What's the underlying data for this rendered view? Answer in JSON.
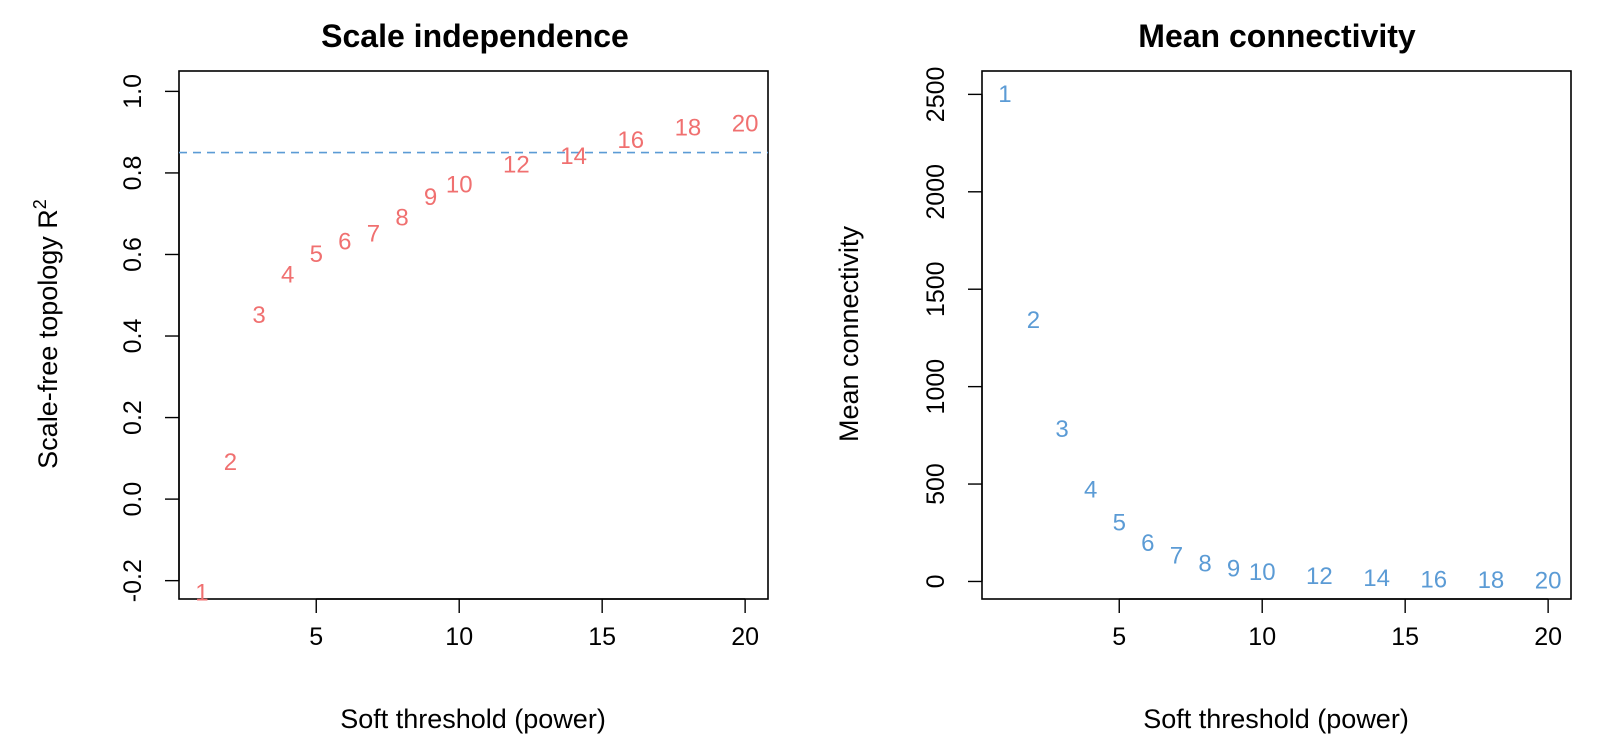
{
  "chart_data": [
    {
      "type": "scatter",
      "title": "Scale independence",
      "xlabel": "Soft threshold (power)",
      "ylabel": "Scale-free topology R",
      "ylabel_superscript": "2",
      "xlim": [
        0.2,
        20.8
      ],
      "ylim": [
        -0.245,
        1.05
      ],
      "x_ticks": [
        "5",
        "10",
        "15",
        "20"
      ],
      "y_ticks": [
        "-0.2",
        "0.0",
        "0.2",
        "0.4",
        "0.6",
        "0.8",
        "1.0"
      ],
      "point_color": "#f07070",
      "points": [
        {
          "x": 1,
          "y": -0.23,
          "label": "1"
        },
        {
          "x": 2,
          "y": 0.09,
          "label": "2"
        },
        {
          "x": 3,
          "y": 0.45,
          "label": "3"
        },
        {
          "x": 4,
          "y": 0.55,
          "label": "4"
        },
        {
          "x": 5,
          "y": 0.6,
          "label": "5"
        },
        {
          "x": 6,
          "y": 0.63,
          "label": "6"
        },
        {
          "x": 7,
          "y": 0.65,
          "label": "7"
        },
        {
          "x": 8,
          "y": 0.69,
          "label": "8"
        },
        {
          "x": 9,
          "y": 0.74,
          "label": "9"
        },
        {
          "x": 10,
          "y": 0.77,
          "label": "10"
        },
        {
          "x": 12,
          "y": 0.82,
          "label": "12"
        },
        {
          "x": 14,
          "y": 0.84,
          "label": "14"
        },
        {
          "x": 16,
          "y": 0.88,
          "label": "16"
        },
        {
          "x": 18,
          "y": 0.91,
          "label": "18"
        },
        {
          "x": 20,
          "y": 0.92,
          "label": "20"
        }
      ],
      "reference_line": {
        "y": 0.85,
        "color": "#5b9bd5",
        "style": "dashed"
      },
      "grid": false,
      "legend": false
    },
    {
      "type": "scatter",
      "title": "Mean connectivity",
      "xlabel": "Soft threshold (power)",
      "ylabel": "Mean connectivity",
      "xlim": [
        0.2,
        20.8
      ],
      "ylim": [
        -90,
        2620
      ],
      "x_ticks": [
        "5",
        "10",
        "15",
        "20"
      ],
      "y_ticks": [
        "0",
        "500",
        "1000",
        "1500",
        "2000",
        "2500"
      ],
      "point_color": "#5b9bd5",
      "points": [
        {
          "x": 1,
          "y": 2500,
          "label": "1"
        },
        {
          "x": 2,
          "y": 1340,
          "label": "2"
        },
        {
          "x": 3,
          "y": 780,
          "label": "3"
        },
        {
          "x": 4,
          "y": 470,
          "label": "4"
        },
        {
          "x": 5,
          "y": 300,
          "label": "5"
        },
        {
          "x": 6,
          "y": 195,
          "label": "6"
        },
        {
          "x": 7,
          "y": 130,
          "label": "7"
        },
        {
          "x": 8,
          "y": 90,
          "label": "8"
        },
        {
          "x": 9,
          "y": 63,
          "label": "9"
        },
        {
          "x": 10,
          "y": 45,
          "label": "10"
        },
        {
          "x": 12,
          "y": 25,
          "label": "12"
        },
        {
          "x": 14,
          "y": 14,
          "label": "14"
        },
        {
          "x": 16,
          "y": 8,
          "label": "16"
        },
        {
          "x": 18,
          "y": 5,
          "label": "18"
        },
        {
          "x": 20,
          "y": 3,
          "label": "20"
        }
      ],
      "grid": false,
      "legend": false
    }
  ]
}
